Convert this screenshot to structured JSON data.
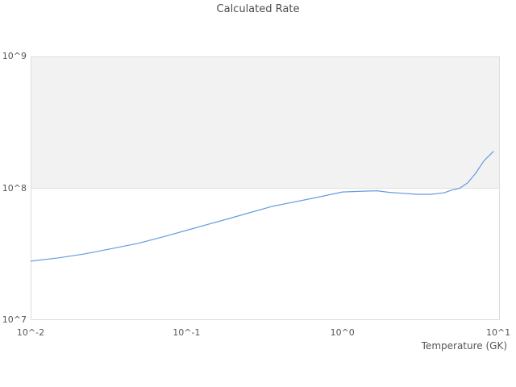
{
  "title": "Calculated Rate",
  "colors": {
    "background": "#ffffff",
    "line": "#649be1",
    "band_fill": "#f2f2f2",
    "gridline": "#e0e0e0",
    "plot_border": "#dddddd",
    "text": "#555555",
    "title_text": "#4d4d4d"
  },
  "chart_data": {
    "type": "line",
    "title": "Calculated Rate",
    "xlabel": "Temperature (GK)",
    "ylabel": "",
    "x_scale": "log",
    "y_scale": "log",
    "xlim_log10": [
      -2,
      1.01
    ],
    "ylim_log10": [
      7,
      9
    ],
    "grid": "decade line at 1e8 only",
    "legend": "none",
    "shaded_band": {
      "from": 100000000.0,
      "to": 1000000000.0
    },
    "x_ticks": [
      {
        "value": 0.01,
        "label": "10^-2"
      },
      {
        "value": 0.1,
        "label": "10^-1"
      },
      {
        "value": 1.0,
        "label": "10^0"
      },
      {
        "value": 10.0,
        "label": "10^1"
      }
    ],
    "y_ticks": [
      {
        "value": 1000000000.0,
        "label": "10^9"
      },
      {
        "value": 100000000.0,
        "label": "10^8"
      },
      {
        "value": 10000000.0,
        "label": "10^7"
      }
    ],
    "series": [
      {
        "name": "Calculated Rate",
        "x": [
          0.01,
          0.015,
          0.022,
          0.033,
          0.049,
          0.073,
          0.108,
          0.196,
          0.356,
          0.646,
          1.0,
          1.36,
          1.67,
          2.0,
          2.47,
          3.0,
          3.7,
          4.5,
          5.0,
          5.65,
          6.36,
          7.16,
          8.07,
          9.08,
          9.31
        ],
        "y": [
          28000000.0,
          29600000.0,
          31700000.0,
          34800000.0,
          38200000.0,
          43200000.0,
          49200000.0,
          59800000.0,
          73000000.0,
          84000000.0,
          93700000.0,
          95000000.0,
          95700000.0,
          93000000.0,
          91500000.0,
          90000000.0,
          90000000.0,
          92500000.0,
          96600000.0,
          100000000.0,
          110000000.0,
          130000000.0,
          161000000.0,
          185000000.0,
          190000000.0
        ]
      }
    ]
  }
}
